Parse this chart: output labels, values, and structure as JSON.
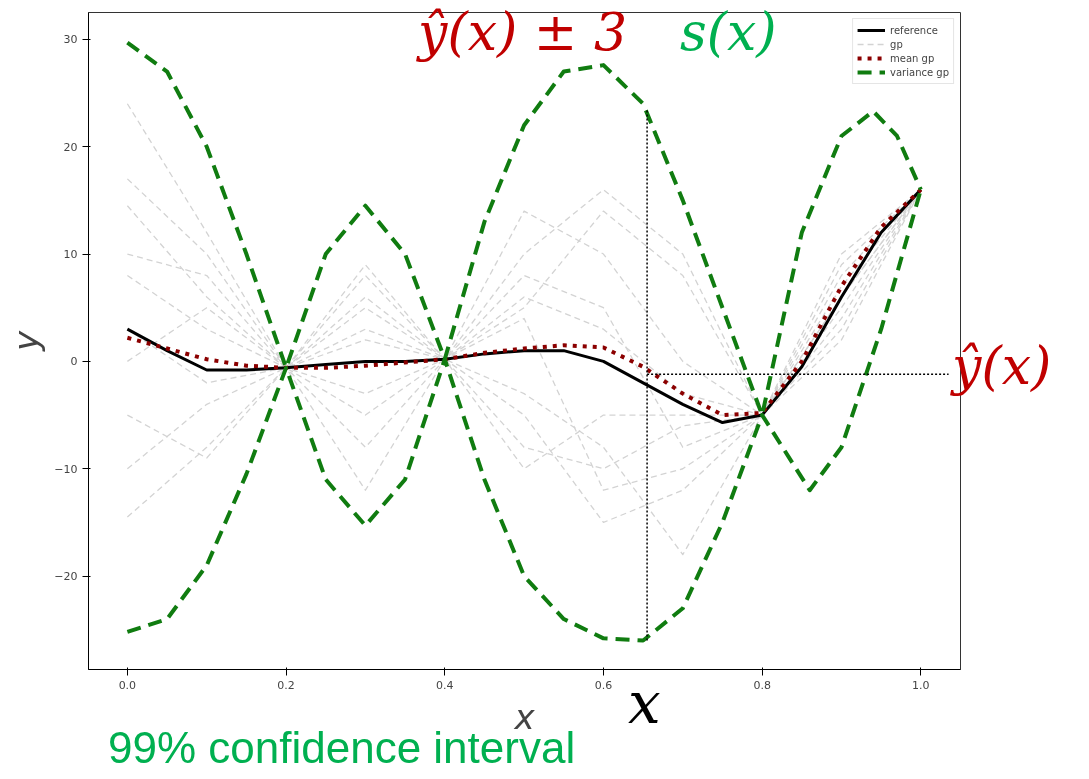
{
  "chart_data": {
    "type": "line",
    "xlabel": "x",
    "ylabel": "y",
    "xlim": [
      -0.049,
      1.05
    ],
    "ylim": [
      -28.7,
      32.5
    ],
    "xticks": [
      {
        "value": 0,
        "label": "0.0"
      },
      {
        "value": 0.2,
        "label": "0.2"
      },
      {
        "value": 0.4,
        "label": "0.4"
      },
      {
        "value": 0.6,
        "label": "0.6"
      },
      {
        "value": 0.8,
        "label": "0.8"
      },
      {
        "value": 1.0,
        "label": "1.0"
      }
    ],
    "yticks": [
      -20,
      -10,
      0,
      10,
      20,
      30
    ],
    "grid": false,
    "legend": "top right",
    "annotations": [
      "ŷ(x) ± 3",
      "s(x)",
      "ŷ(x)",
      "x",
      "99% confidence interval"
    ],
    "series": [
      {
        "name": "reference",
        "color": "#000000",
        "line_style": "solid",
        "x": [
          0,
          0.05,
          0.1,
          0.15,
          0.2,
          0.25,
          0.3,
          0.35,
          0.4,
          0.45,
          0.5,
          0.55,
          0.6,
          0.65,
          0.7,
          0.75,
          0.8,
          0.85,
          0.9,
          0.95,
          1.0
        ],
        "values": [
          3,
          1,
          -0.8,
          -0.8,
          -0.6,
          -0.3,
          0,
          0,
          0.2,
          0.7,
          1.0,
          1.0,
          0,
          -2,
          -4,
          -5.7,
          -5,
          -0.5,
          6,
          12,
          16
        ]
      },
      {
        "name": "gp",
        "color": "#d3d3d3",
        "line_style": "dashed",
        "x": [
          0,
          0.1,
          0.2,
          0.3,
          0.4,
          0.5,
          0.6,
          0.7,
          0.8,
          0.9,
          1.0
        ],
        "values": [
          24,
          12,
          -0.6,
          8,
          0.2,
          10,
          16,
          10,
          -5,
          10,
          16
        ]
      },
      {
        "color": "#d3d3d3",
        "line_style": "dashed",
        "x": [
          0,
          0.1,
          0.2,
          0.3,
          0.4,
          0.5,
          0.6,
          0.7,
          0.8,
          0.9,
          1.0
        ],
        "values": [
          17,
          10,
          -0.6,
          -5,
          0.2,
          -8,
          -10,
          -6,
          -5,
          3,
          16
        ]
      },
      {
        "color": "#d3d3d3",
        "line_style": "dashed",
        "x": [
          0,
          0.1,
          0.2,
          0.3,
          0.4,
          0.5,
          0.6,
          0.7,
          0.8,
          0.9,
          1.0
        ],
        "values": [
          14.5,
          6,
          -0.6,
          5,
          0.2,
          5,
          14,
          8,
          -5,
          8,
          16
        ]
      },
      {
        "color": "#d3d3d3",
        "line_style": "dashed",
        "x": [
          0,
          0.1,
          0.2,
          0.3,
          0.4,
          0.5,
          0.6,
          0.7,
          0.8,
          0.9,
          1.0
        ],
        "values": [
          -14.5,
          -8,
          -0.6,
          3,
          0.2,
          -5,
          -15,
          -12,
          -5,
          5,
          16
        ]
      },
      {
        "color": "#d3d3d3",
        "line_style": "dashed",
        "x": [
          0,
          0.1,
          0.2,
          0.3,
          0.4,
          0.5,
          0.6,
          0.7,
          0.8,
          0.9,
          1.0
        ],
        "values": [
          8,
          3,
          -0.6,
          -8,
          0.2,
          6,
          3,
          -3,
          -5,
          7,
          16
        ]
      },
      {
        "color": "#d3d3d3",
        "line_style": "dashed",
        "x": [
          0,
          0.1,
          0.2,
          0.3,
          0.4,
          0.5,
          0.6,
          0.7,
          0.8,
          0.9,
          1.0
        ],
        "values": [
          -5,
          -9,
          -0.6,
          6,
          0.2,
          -3,
          -8,
          -18,
          -5,
          6,
          16
        ]
      },
      {
        "color": "#d3d3d3",
        "line_style": "dashed",
        "x": [
          0,
          0.1,
          0.2,
          0.3,
          0.4,
          0.5,
          0.6,
          0.7,
          0.8,
          0.9,
          1.0
        ],
        "values": [
          10,
          8,
          -0.6,
          -3,
          0.2,
          14,
          10,
          0,
          -5,
          2,
          16
        ]
      },
      {
        "color": "#d3d3d3",
        "line_style": "dashed",
        "x": [
          0,
          0.1,
          0.2,
          0.3,
          0.4,
          0.5,
          0.6,
          0.7,
          0.8,
          0.9,
          1.0
        ],
        "values": [
          -10,
          -4,
          -0.6,
          9,
          0.2,
          -10,
          -5,
          -5,
          -5,
          9,
          16
        ]
      },
      {
        "color": "#d3d3d3",
        "line_style": "dashed",
        "x": [
          0,
          0.1,
          0.2,
          0.3,
          0.4,
          0.5,
          0.6,
          0.7,
          0.8,
          0.9,
          1.0
        ],
        "values": [
          3,
          -2,
          -0.6,
          2,
          0.2,
          4,
          -12,
          -10,
          -5,
          4,
          16
        ]
      },
      {
        "color": "#d3d3d3",
        "line_style": "dashed",
        "x": [
          0,
          0.1,
          0.2,
          0.3,
          0.4,
          0.5,
          0.6,
          0.7,
          0.8,
          0.9,
          1.0
        ],
        "values": [
          0,
          5,
          -0.6,
          -12,
          0.2,
          8,
          5,
          -8,
          -5,
          6,
          16
        ]
      },
      {
        "name": "mean gp",
        "color": "#8b0000",
        "line_style": "dotted",
        "x": [
          0,
          0.05,
          0.1,
          0.15,
          0.2,
          0.25,
          0.3,
          0.35,
          0.4,
          0.45,
          0.5,
          0.55,
          0.6,
          0.65,
          0.7,
          0.75,
          0.8,
          0.85,
          0.9,
          0.95,
          1.0
        ],
        "values": [
          2.2,
          1.2,
          0.2,
          -0.4,
          -0.6,
          -0.6,
          -0.4,
          -0.1,
          0.2,
          0.8,
          1.2,
          1.5,
          1.3,
          -0.5,
          -3,
          -5,
          -4.8,
          0,
          7,
          12.5,
          16
        ]
      },
      {
        "name": "variance gp",
        "color": "#107c10",
        "line_style": "dashed",
        "x": [
          0,
          0.05,
          0.1,
          0.15,
          0.2,
          0.25,
          0.3,
          0.35,
          0.4,
          0.45,
          0.5,
          0.55,
          0.6,
          0.65,
          0.7,
          0.75,
          0.8,
          0.85,
          0.9,
          0.94,
          0.97,
          1.0
        ],
        "values": [
          29.7,
          27,
          20,
          10,
          -0.6,
          10,
          14.5,
          10,
          0.2,
          13,
          22,
          27,
          27.6,
          24,
          15,
          5,
          -5,
          12,
          21,
          23.3,
          21,
          16
        ]
      },
      {
        "color": "#107c10",
        "line_style": "dashed",
        "x": [
          0,
          0.05,
          0.1,
          0.15,
          0.2,
          0.25,
          0.3,
          0.35,
          0.4,
          0.45,
          0.5,
          0.55,
          0.6,
          0.65,
          0.7,
          0.75,
          0.8,
          0.86,
          0.9,
          0.95,
          1.0
        ],
        "values": [
          -25.2,
          -24,
          -19,
          -10.5,
          -0.6,
          -11,
          -15.3,
          -11,
          0.2,
          -11,
          -20,
          -24,
          -25.8,
          -26,
          -23,
          -15,
          -5,
          -12,
          -8,
          3,
          16
        ]
      },
      {
        "color": "#000000",
        "line_style": "dotted",
        "x": [
          0.655,
          0.655
        ],
        "values": [
          -26,
          23.5
        ]
      },
      {
        "color": "#000000",
        "line_style": "dotted",
        "x": [
          0.655,
          1.035
        ],
        "values": [
          -1.2,
          -1.2
        ]
      }
    ]
  }
}
